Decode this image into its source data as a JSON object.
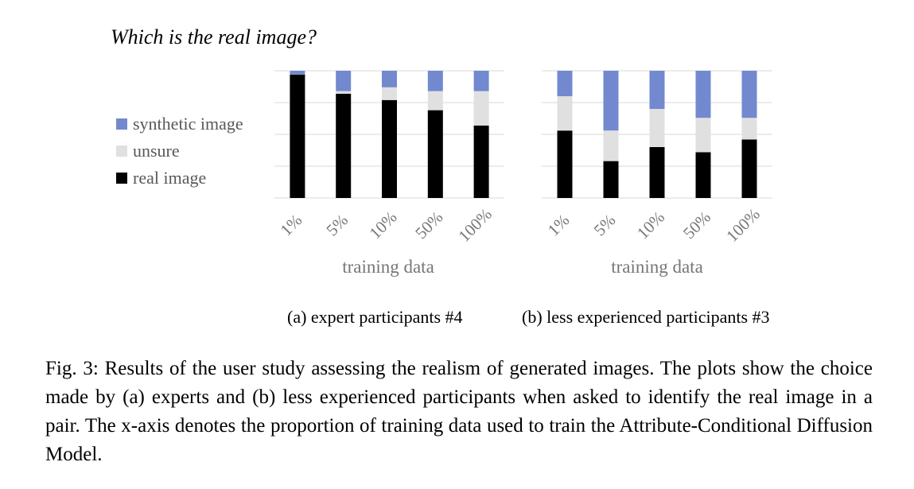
{
  "title": "Which is the real image?",
  "legend": [
    {
      "label": "synthetic image",
      "color": "#7289d0"
    },
    {
      "label": "unsure",
      "color": "#e0e0e0"
    },
    {
      "label": "real image",
      "color": "#000000"
    }
  ],
  "chart_data": [
    {
      "type": "bar",
      "stacked": true,
      "categories": [
        "1%",
        "5%",
        "10%",
        "50%",
        "100%"
      ],
      "series": [
        {
          "name": "real image",
          "values": [
            97,
            82,
            77,
            69,
            57
          ]
        },
        {
          "name": "unsure",
          "values": [
            0,
            2,
            10,
            15,
            27
          ]
        },
        {
          "name": "synthetic image",
          "values": [
            3,
            16,
            13,
            16,
            16
          ]
        }
      ],
      "xlabel": "training data",
      "ylim": [
        0,
        100
      ],
      "grid": true,
      "legend": "left",
      "caption": "(a) expert participants #4"
    },
    {
      "type": "bar",
      "stacked": true,
      "categories": [
        "1%",
        "5%",
        "10%",
        "50%",
        "100%"
      ],
      "series": [
        {
          "name": "real image",
          "values": [
            53,
            29,
            40,
            36,
            46
          ]
        },
        {
          "name": "unsure",
          "values": [
            27,
            24,
            30,
            27,
            17
          ]
        },
        {
          "name": "synthetic image",
          "values": [
            20,
            47,
            30,
            37,
            37
          ]
        }
      ],
      "xlabel": "training data",
      "ylim": [
        0,
        100
      ],
      "grid": true,
      "legend": "left",
      "caption": "(b) less experienced participants #3"
    }
  ],
  "figure_caption": "Fig. 3: Results of the user study assessing the realism of generated images. The plots show the choice made by (a) experts and (b) less experienced participants when asked to identify the real image in a pair. The x-axis denotes the proportion of training data used to train the Attribute-Conditional Diffusion Model."
}
